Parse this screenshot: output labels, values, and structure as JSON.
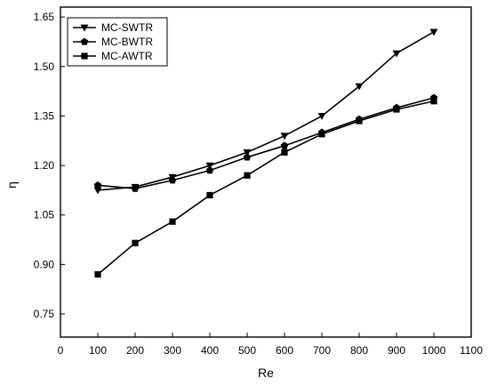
{
  "chart_data": {
    "type": "line",
    "xlabel": "Re",
    "ylabel": "η",
    "xlim": [
      0,
      1100
    ],
    "ylim": [
      0.68,
      1.68
    ],
    "x_ticks": [
      0,
      100,
      200,
      300,
      400,
      500,
      600,
      700,
      800,
      900,
      1000,
      1100
    ],
    "y_ticks": [
      0.75,
      0.9,
      1.05,
      1.2,
      1.35,
      1.5,
      1.65
    ],
    "y_tick_labels": [
      "0.75",
      "0.90",
      "1.05",
      "1.20",
      "1.35",
      "1.50",
      "1.65"
    ],
    "grid": false,
    "legend_position": "top-left",
    "x": [
      100,
      200,
      300,
      400,
      500,
      600,
      700,
      800,
      900,
      1000
    ],
    "series": [
      {
        "name": "MC-SWTR",
        "marker": "triangle-down",
        "values": [
          1.125,
          1.135,
          1.165,
          1.2,
          1.24,
          1.29,
          1.35,
          1.44,
          1.54,
          1.605
        ]
      },
      {
        "name": "MC-BWTR",
        "marker": "pentagon",
        "values": [
          1.14,
          1.13,
          1.155,
          1.185,
          1.225,
          1.26,
          1.3,
          1.34,
          1.375,
          1.405
        ]
      },
      {
        "name": "MC-AWTR",
        "marker": "square",
        "values": [
          0.87,
          0.965,
          1.03,
          1.11,
          1.17,
          1.24,
          1.295,
          1.335,
          1.37,
          1.395
        ]
      }
    ]
  }
}
